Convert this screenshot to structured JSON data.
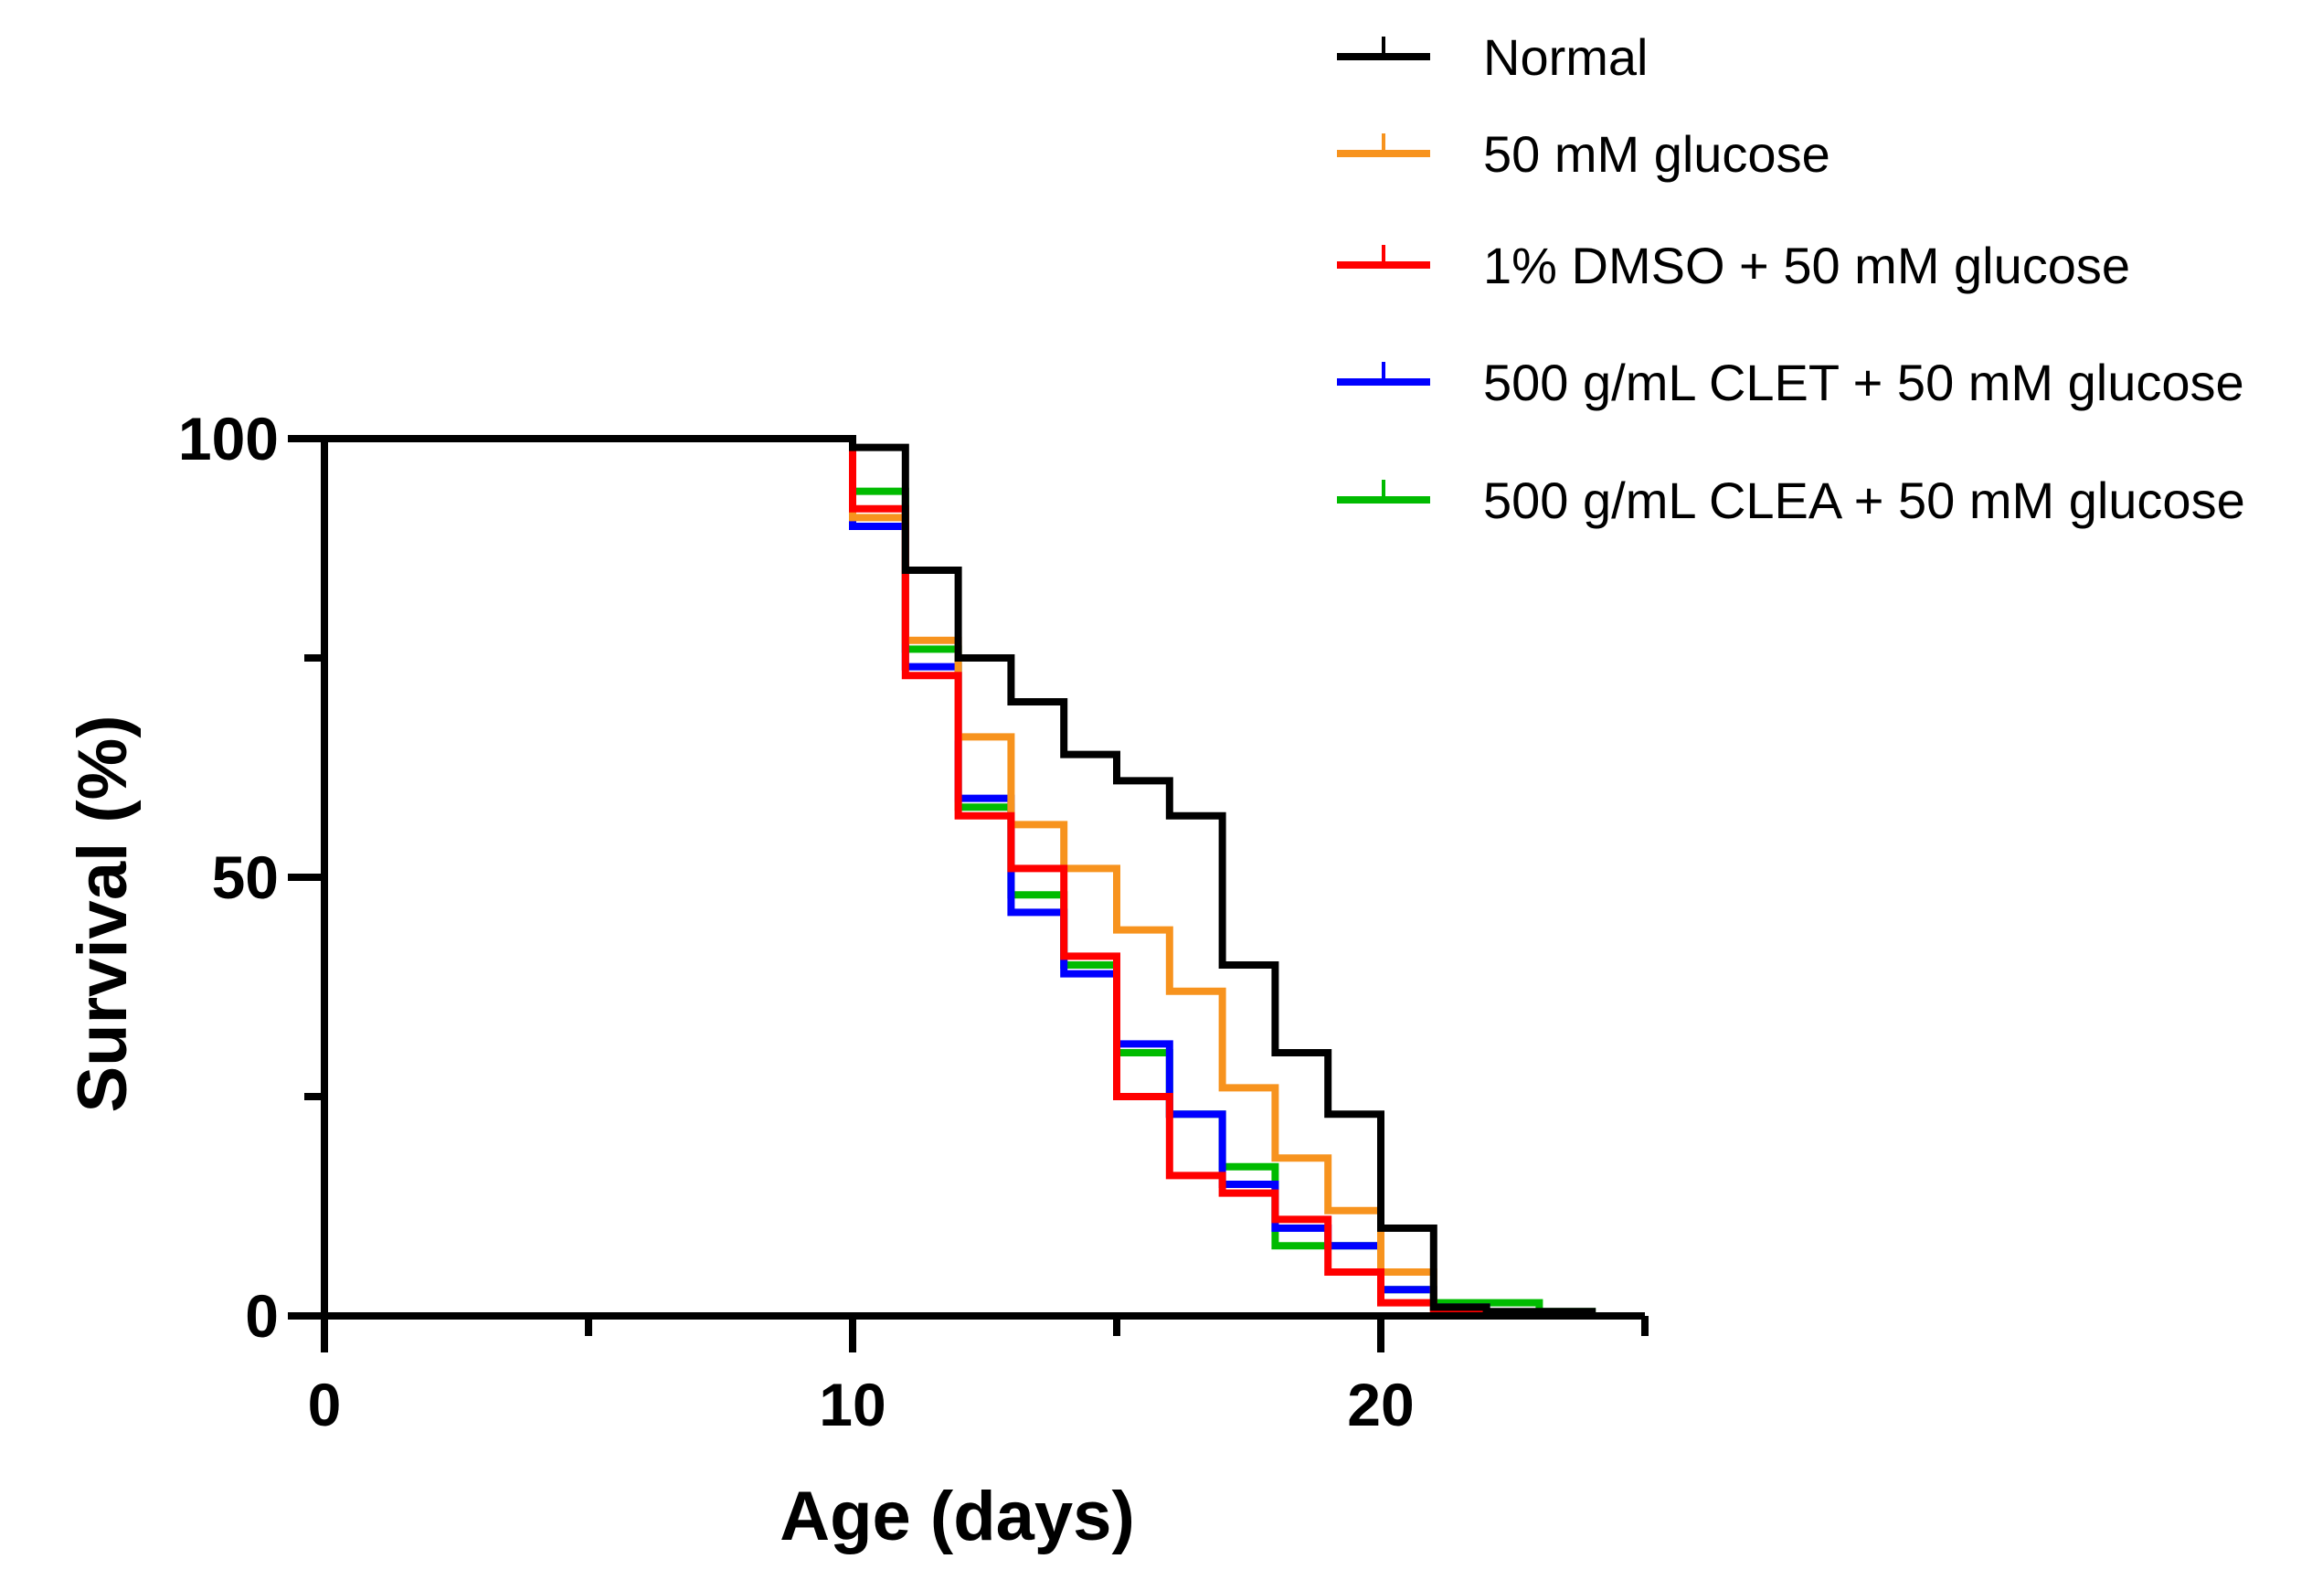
{
  "chart_data": {
    "type": "line",
    "subtype": "kaplan-meier-step",
    "title": "",
    "xlabel": "Age (days)",
    "ylabel": "Survival (%)",
    "xlim": [
      0,
      25
    ],
    "ylim": [
      0,
      100
    ],
    "x_ticks": [
      0,
      10,
      20
    ],
    "x_minor_ticks": [
      5,
      15,
      25
    ],
    "y_ticks": [
      0,
      50,
      100
    ],
    "y_minor_ticks": [
      25,
      75
    ],
    "legend_position": "top-right",
    "grid": false,
    "series": [
      {
        "name": "Normal",
        "color": "#000000",
        "x": [
          0,
          10,
          11,
          12,
          13,
          14,
          15,
          16,
          17,
          18,
          19,
          20,
          21,
          22,
          23,
          24
        ],
        "y": [
          100,
          99,
          85,
          75,
          70,
          64,
          61,
          57,
          40,
          30,
          23,
          10,
          1,
          0.5,
          0.5,
          0
        ]
      },
      {
        "name": "50 mM glucose",
        "color": "#F7931E",
        "x": [
          0,
          10,
          11,
          12,
          13,
          14,
          15,
          16,
          17,
          18,
          19,
          20,
          21
        ],
        "y": [
          100,
          91,
          77,
          66,
          56,
          51,
          44,
          37,
          26,
          18,
          12,
          5,
          0
        ]
      },
      {
        "name": "1% DMSO + 50 mM glucose",
        "color": "#FF0000",
        "x": [
          0,
          10,
          11,
          12,
          13,
          14,
          15,
          16,
          17,
          18,
          19,
          20,
          21,
          22
        ],
        "y": [
          100,
          92,
          73,
          57,
          51,
          41,
          25,
          16,
          14,
          11,
          5,
          1.5,
          0.5,
          0
        ]
      },
      {
        "name": "500 g/mL CLET + 50 mM glucose",
        "color": "#0000FF",
        "x": [
          0,
          10,
          11,
          12,
          13,
          14,
          15,
          16,
          17,
          18,
          19,
          20,
          21,
          22
        ],
        "y": [
          100,
          90,
          74,
          59,
          46,
          39,
          31,
          23,
          15,
          10,
          8,
          3,
          1,
          0
        ]
      },
      {
        "name": "500 g/mL  CLEA + 50 mM glucose",
        "color": "#00BB00",
        "x": [
          0,
          10,
          11,
          12,
          13,
          14,
          15,
          16,
          17,
          18,
          19,
          20,
          21,
          23,
          24
        ],
        "y": [
          100,
          94,
          76,
          58,
          48,
          40,
          30,
          23,
          17,
          8,
          8,
          3,
          1.5,
          0.5,
          0
        ]
      }
    ]
  }
}
